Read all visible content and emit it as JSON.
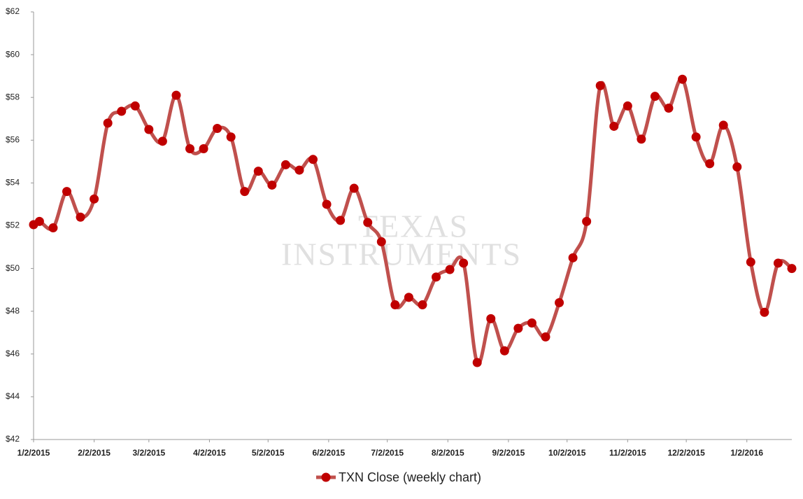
{
  "chart_data": {
    "type": "line",
    "watermark": [
      "TEXAS",
      "INSTRUMENTS"
    ],
    "x": [
      "2015-01-02",
      "2015-01-05",
      "2015-01-12",
      "2015-01-19",
      "2015-01-26",
      "2015-02-02",
      "2015-02-09",
      "2015-02-16",
      "2015-02-23",
      "2015-03-02",
      "2015-03-09",
      "2015-03-16",
      "2015-03-23",
      "2015-03-30",
      "2015-04-06",
      "2015-04-13",
      "2015-04-20",
      "2015-04-27",
      "2015-05-04",
      "2015-05-11",
      "2015-05-18",
      "2015-05-25",
      "2015-06-01",
      "2015-06-08",
      "2015-06-15",
      "2015-06-22",
      "2015-06-29",
      "2015-07-06",
      "2015-07-13",
      "2015-07-20",
      "2015-07-27",
      "2015-08-03",
      "2015-08-10",
      "2015-08-17",
      "2015-08-24",
      "2015-08-31",
      "2015-09-07",
      "2015-09-14",
      "2015-09-21",
      "2015-09-28",
      "2015-10-05",
      "2015-10-12",
      "2015-10-19",
      "2015-10-26",
      "2015-11-02",
      "2015-11-09",
      "2015-11-16",
      "2015-11-23",
      "2015-11-30",
      "2015-12-07",
      "2015-12-14",
      "2015-12-21",
      "2015-12-28",
      "2016-01-04",
      "2016-01-11",
      "2016-01-18",
      "2016-01-25"
    ],
    "series": [
      {
        "name": "TXN Close (weekly chart)",
        "color": "#c0504d",
        "marker_color": "#c00000",
        "values": [
          52.05,
          52.2,
          51.9,
          53.6,
          52.4,
          53.25,
          56.8,
          57.35,
          57.6,
          56.5,
          55.95,
          58.1,
          55.6,
          55.6,
          56.55,
          56.15,
          53.6,
          54.55,
          53.9,
          54.85,
          54.6,
          55.1,
          53.0,
          52.25,
          53.75,
          52.15,
          51.25,
          48.3,
          48.65,
          48.3,
          49.6,
          49.95,
          50.25,
          45.6,
          47.65,
          46.15,
          47.2,
          47.45,
          46.8,
          48.4,
          50.5,
          52.2,
          58.55,
          56.65,
          57.6,
          56.05,
          58.05,
          57.5,
          58.85,
          56.15,
          54.9,
          56.7,
          54.75,
          50.3,
          47.95,
          50.25,
          50.0
        ]
      }
    ],
    "xlim": [
      "2015-01-02",
      "2016-01-25"
    ],
    "xticks": [
      {
        "value": "2015-01-02",
        "label": "1/2/2015"
      },
      {
        "value": "2015-02-02",
        "label": "2/2/2015"
      },
      {
        "value": "2015-03-02",
        "label": "3/2/2015"
      },
      {
        "value": "2015-04-02",
        "label": "4/2/2015"
      },
      {
        "value": "2015-05-02",
        "label": "5/2/2015"
      },
      {
        "value": "2015-06-02",
        "label": "6/2/2015"
      },
      {
        "value": "2015-07-02",
        "label": "7/2/2015"
      },
      {
        "value": "2015-08-02",
        "label": "8/2/2015"
      },
      {
        "value": "2015-09-02",
        "label": "9/2/2015"
      },
      {
        "value": "2015-10-02",
        "label": "10/2/2015"
      },
      {
        "value": "2015-11-02",
        "label": "11/2/2015"
      },
      {
        "value": "2015-12-02",
        "label": "12/2/2015"
      },
      {
        "value": "2016-01-02",
        "label": "1/2/2016"
      }
    ],
    "ylim": [
      42,
      62
    ],
    "yticks": [
      {
        "value": 42,
        "label": "$42"
      },
      {
        "value": 44,
        "label": "$44"
      },
      {
        "value": 46,
        "label": "$46"
      },
      {
        "value": 48,
        "label": "$48"
      },
      {
        "value": 50,
        "label": "$50"
      },
      {
        "value": 52,
        "label": "$52"
      },
      {
        "value": 54,
        "label": "$54"
      },
      {
        "value": 56,
        "label": "$56"
      },
      {
        "value": 58,
        "label": "$58"
      },
      {
        "value": 60,
        "label": "$60"
      },
      {
        "value": 62,
        "label": "$62"
      }
    ],
    "grid": false,
    "legend": "bottom"
  }
}
